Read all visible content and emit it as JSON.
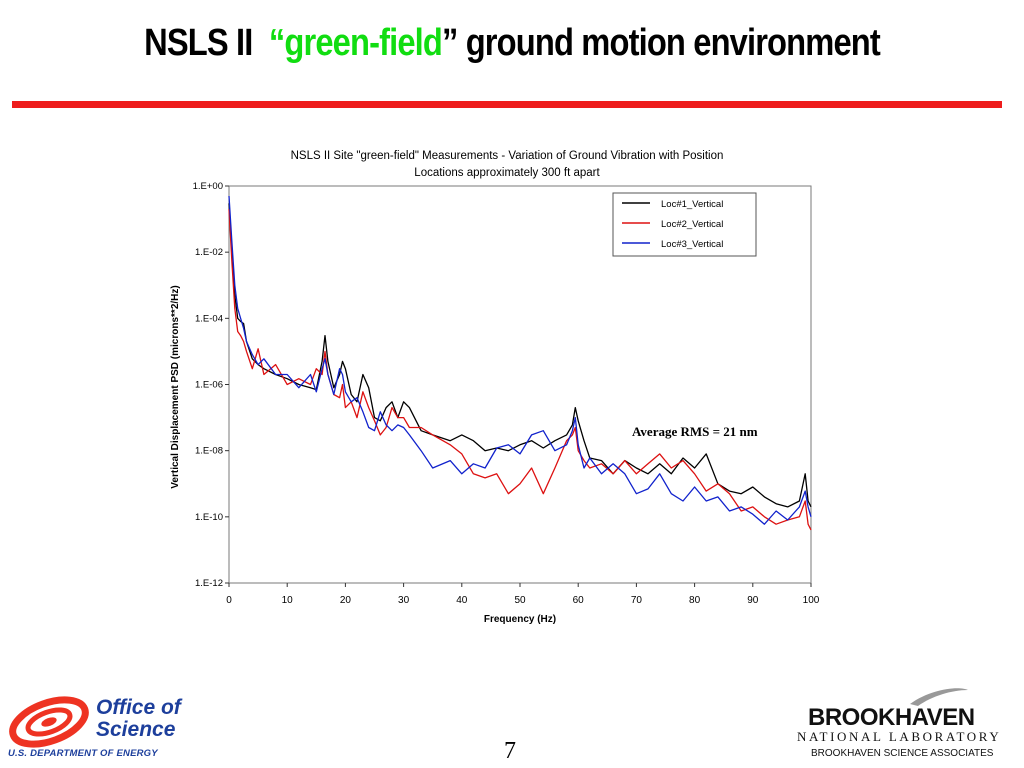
{
  "slide": {
    "title_part1": "NSLS II",
    "title_quote_open": "“",
    "title_accent": "green-field",
    "title_quote_close": "”",
    "title_part2": "ground motion environment",
    "page_number": "7",
    "accent_color": "#11dd11",
    "rule_color": "#ee1c1c"
  },
  "logos": {
    "doe_line1": "Office of",
    "doe_line2": "Science",
    "doe_sub": "U.S. DEPARTMENT OF ENERGY",
    "bnl_name": "BROOKHAVEN",
    "bnl_lab": "NATIONAL LABORATORY",
    "bnl_assoc": "BROOKHAVEN SCIENCE ASSOCIATES"
  },
  "chart_data": {
    "type": "line",
    "title": "NSLS II Site \"green-field\" Measurements - Variation of Ground Vibration with Position",
    "subtitle": "Locations approximately 300 ft apart",
    "xlabel": "Frequency (Hz)",
    "ylabel": "Vertical Displacement PSD (microns**2/Hz)",
    "xlim": [
      0,
      100
    ],
    "ylim_log10": [
      -12,
      0
    ],
    "y_scale": "log",
    "x_ticks": [
      "0",
      "10",
      "20",
      "30",
      "40",
      "50",
      "60",
      "70",
      "80",
      "90",
      "100"
    ],
    "y_ticks": [
      "1.E+00",
      "1.E-02",
      "1.E-04",
      "1.E-06",
      "1.E-08",
      "1.E-10",
      "1.E-12"
    ],
    "grid": false,
    "legend_position": "top-right",
    "annotation": "Average RMS = 21 nm",
    "series": [
      {
        "name": "Loc#1_Vertical",
        "color": "#000000",
        "x": [
          0,
          0.5,
          1,
          1.5,
          2,
          2.5,
          3,
          4,
          5,
          6,
          8,
          10,
          12,
          14,
          15,
          16,
          16.5,
          17,
          18,
          19,
          19.5,
          20,
          21,
          22,
          23,
          24,
          25,
          26,
          27,
          28,
          29,
          30,
          31,
          33,
          35,
          38,
          40,
          42,
          44,
          46,
          48,
          50,
          52,
          54,
          56,
          58,
          59,
          59.5,
          60,
          61,
          62,
          64,
          66,
          68,
          70,
          72,
          74,
          76,
          78,
          80,
          82,
          84,
          86,
          88,
          90,
          92,
          94,
          96,
          98,
          99,
          99.5,
          100
        ],
        "y": [
          0.3,
          0.01,
          0.0005,
          0.0001,
          8e-05,
          7e-05,
          2e-05,
          6e-06,
          4e-06,
          3e-06,
          2e-06,
          1.5e-06,
          1e-06,
          8e-07,
          7e-07,
          5e-06,
          3e-05,
          5e-06,
          8e-07,
          2e-06,
          5e-06,
          3e-06,
          5e-07,
          3e-07,
          2e-06,
          8e-07,
          1e-07,
          8e-08,
          2e-07,
          3e-07,
          1e-07,
          3e-07,
          2e-07,
          4e-08,
          3e-08,
          2e-08,
          3e-08,
          2e-08,
          1e-08,
          1.2e-08,
          1e-08,
          1.5e-08,
          2e-08,
          1.2e-08,
          2e-08,
          3e-08,
          6e-08,
          2e-07,
          8e-08,
          2e-08,
          6e-09,
          5e-09,
          2e-09,
          5e-09,
          3e-09,
          2e-09,
          4e-09,
          2e-09,
          6e-09,
          3e-09,
          8e-09,
          1e-09,
          6e-10,
          5e-10,
          8e-10,
          4e-10,
          2.5e-10,
          2e-10,
          3e-10,
          2e-09,
          3e-10,
          2e-10
        ]
      },
      {
        "name": "Loc#2_Vertical",
        "color": "#dd1111",
        "x": [
          0,
          0.5,
          1,
          1.5,
          2,
          2.5,
          3,
          4,
          5,
          6,
          8,
          10,
          12,
          14,
          15,
          16,
          16.5,
          17,
          18,
          19,
          19.5,
          20,
          21,
          22,
          23,
          24,
          25,
          26,
          27,
          28,
          29,
          30,
          31,
          33,
          35,
          38,
          40,
          42,
          44,
          46,
          48,
          50,
          52,
          54,
          56,
          58,
          59,
          59.5,
          60,
          61,
          62,
          64,
          66,
          68,
          70,
          72,
          74,
          76,
          78,
          80,
          82,
          84,
          86,
          88,
          90,
          92,
          94,
          96,
          98,
          99,
          99.5,
          100
        ],
        "y": [
          0.2,
          0.005,
          0.0002,
          4e-05,
          3e-05,
          2e-05,
          1e-05,
          3e-06,
          1.2e-05,
          2e-06,
          4e-06,
          1e-06,
          1.5e-06,
          1e-06,
          3e-06,
          2e-06,
          1e-05,
          2e-06,
          5e-07,
          4e-07,
          1e-06,
          2e-07,
          3e-07,
          1e-07,
          6e-07,
          2e-07,
          8e-08,
          3e-08,
          5e-08,
          2e-07,
          1e-07,
          1e-07,
          5e-08,
          5e-08,
          3e-08,
          1.5e-08,
          8e-09,
          2e-09,
          1.5e-09,
          2e-09,
          5e-10,
          1e-09,
          3e-09,
          5e-10,
          3e-09,
          2e-08,
          3e-08,
          5e-08,
          1e-08,
          5e-09,
          3e-09,
          4e-09,
          2e-09,
          5e-09,
          2e-09,
          4e-09,
          8e-09,
          3e-09,
          5e-09,
          2e-09,
          6e-10,
          1e-09,
          5e-10,
          1.5e-10,
          2e-10,
          1e-10,
          6e-11,
          8e-11,
          1e-10,
          3e-10,
          6e-11,
          4e-11
        ]
      },
      {
        "name": "Loc#3_Vertical",
        "color": "#1122cc",
        "x": [
          0,
          0.5,
          1,
          1.5,
          2,
          2.5,
          3,
          4,
          5,
          6,
          8,
          10,
          12,
          14,
          15,
          16,
          16.5,
          17,
          18,
          19,
          19.5,
          20,
          21,
          22,
          23,
          24,
          25,
          26,
          27,
          28,
          29,
          30,
          31,
          33,
          35,
          38,
          40,
          42,
          44,
          46,
          48,
          50,
          52,
          54,
          56,
          58,
          59,
          59.5,
          60,
          61,
          62,
          64,
          66,
          68,
          70,
          72,
          74,
          76,
          78,
          80,
          82,
          84,
          86,
          88,
          90,
          92,
          94,
          96,
          98,
          99,
          99.5,
          100
        ],
        "y": [
          0.5,
          0.02,
          0.001,
          0.0002,
          0.0001,
          5e-05,
          2e-05,
          8e-06,
          4e-06,
          6e-06,
          2e-06,
          2e-06,
          8e-07,
          2e-06,
          6e-07,
          3e-06,
          6e-06,
          2e-06,
          5e-07,
          3e-06,
          2e-06,
          6e-07,
          3e-07,
          4e-07,
          1.5e-07,
          5e-08,
          4e-08,
          1.5e-07,
          6e-08,
          4e-08,
          6e-08,
          5e-08,
          3e-08,
          1e-08,
          3e-09,
          5e-09,
          2e-09,
          4e-09,
          3e-09,
          1.2e-08,
          1.5e-08,
          8e-09,
          3e-08,
          4e-08,
          1e-08,
          1.5e-08,
          4e-08,
          1e-07,
          1.5e-08,
          3e-09,
          6e-09,
          2e-09,
          4e-09,
          2e-09,
          5e-10,
          7e-10,
          2e-09,
          5e-10,
          3e-10,
          8e-10,
          3e-10,
          4e-10,
          1.5e-10,
          2e-10,
          1.2e-10,
          6e-11,
          1.5e-10,
          8e-11,
          2e-10,
          6e-10,
          2e-10,
          1e-10
        ]
      }
    ]
  }
}
